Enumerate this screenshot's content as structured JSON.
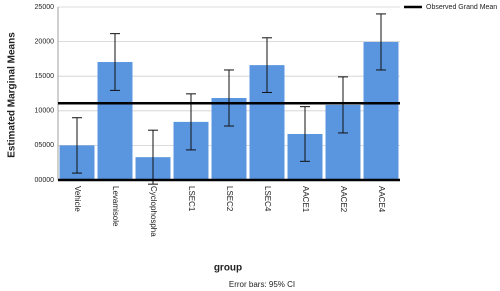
{
  "chart_data": {
    "type": "bar",
    "x_label": "group",
    "y_label": "Estimated Marginal Means",
    "footnote": "Error bars: 95% CI",
    "categories": [
      "Vehicle",
      "Levamisole",
      "Cyclophospha",
      "LSEC1",
      "LSEC2",
      "LSEC4",
      "AACE1",
      "AACE2",
      "AACE4"
    ],
    "values": [
      5000,
      17050,
      3300,
      8400,
      11850,
      16600,
      6650,
      10850,
      19950
    ],
    "errors": [
      4000,
      4100,
      3900,
      4050,
      4050,
      3950,
      3950,
      4050,
      4050
    ],
    "color": "#5a96e0",
    "reference_line": {
      "name": "Observed Grand Mean",
      "value": 11100
    },
    "legend_position": "top-right",
    "ylim": [
      0,
      25000
    ],
    "yticks": [
      {
        "value": 0,
        "label": "00000"
      },
      {
        "value": 5000,
        "label": "05000"
      },
      {
        "value": 10000,
        "label": "10000"
      },
      {
        "value": 15000,
        "label": "15000"
      },
      {
        "value": 20000,
        "label": "20000"
      },
      {
        "value": 25000,
        "label": "25000"
      }
    ],
    "grid": true
  }
}
